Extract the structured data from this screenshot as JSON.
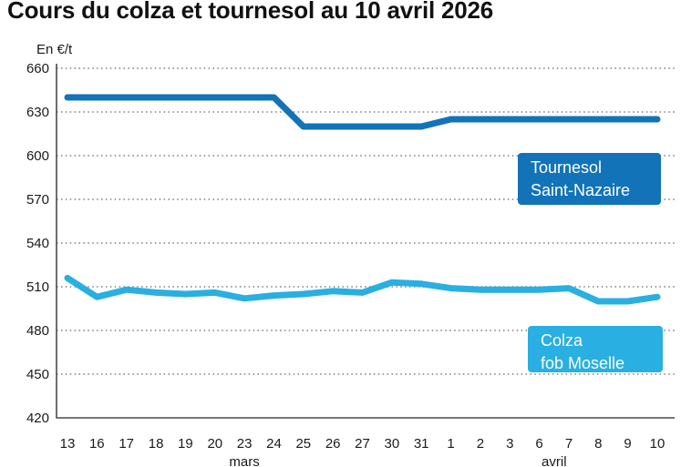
{
  "title": "Cours du colza et tournesol au 10 avril 2026",
  "chart_data": {
    "type": "line",
    "title": "Cours du colza et tournesol au 10 avril 2026",
    "ylabel": "En €/t",
    "ylim": [
      420,
      660
    ],
    "yticks": [
      660,
      630,
      600,
      570,
      540,
      510,
      480,
      450,
      420
    ],
    "grid": "horizontal dotted",
    "legend_position": "inline boxes on plot",
    "categories": [
      "13",
      "16",
      "17",
      "18",
      "19",
      "20",
      "23",
      "24",
      "25",
      "26",
      "27",
      "30",
      "31",
      "1",
      "2",
      "3",
      "6",
      "7",
      "8",
      "9",
      "10"
    ],
    "month_labels": [
      {
        "label": "mars",
        "span": [
          0,
          12
        ]
      },
      {
        "label": "avril",
        "span": [
          13,
          20
        ]
      }
    ],
    "series": [
      {
        "name": "Tournesol Saint-Nazaire",
        "label_lines": [
          "Tournesol",
          "Saint-Nazaire"
        ],
        "color": "#1273b8",
        "values": [
          640,
          640,
          640,
          640,
          640,
          640,
          640,
          640,
          620,
          620,
          620,
          620,
          620,
          625,
          625,
          625,
          625,
          625,
          625,
          625,
          625
        ]
      },
      {
        "name": "Colza fob Moselle",
        "label_lines": [
          "Colza",
          "fob Moselle"
        ],
        "color": "#29afe1",
        "values": [
          516,
          503,
          508,
          506,
          505,
          506,
          502,
          504,
          505,
          507,
          506,
          513,
          512,
          509,
          508,
          508,
          508,
          509,
          500,
          500,
          503
        ]
      }
    ]
  }
}
